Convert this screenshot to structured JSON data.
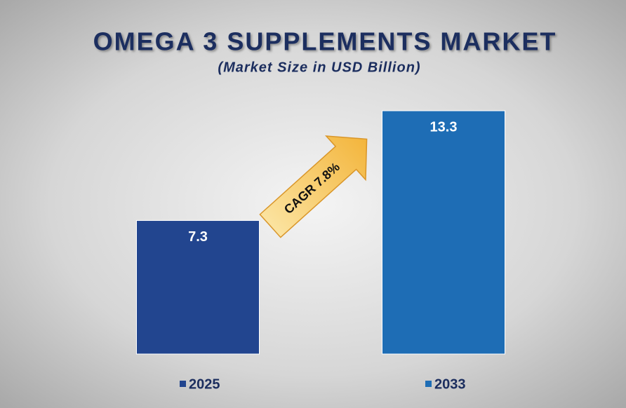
{
  "chart_data": {
    "type": "bar",
    "title": "OMEGA 3 SUPPLEMENTS MARKET",
    "subtitle": "(Market Size in USD Billion)",
    "categories": [
      "2025",
      "2033"
    ],
    "values": [
      7.3,
      13.3
    ],
    "colors": [
      "#22458f",
      "#1e6db5"
    ],
    "annotation": "CAGR 7.8%"
  }
}
